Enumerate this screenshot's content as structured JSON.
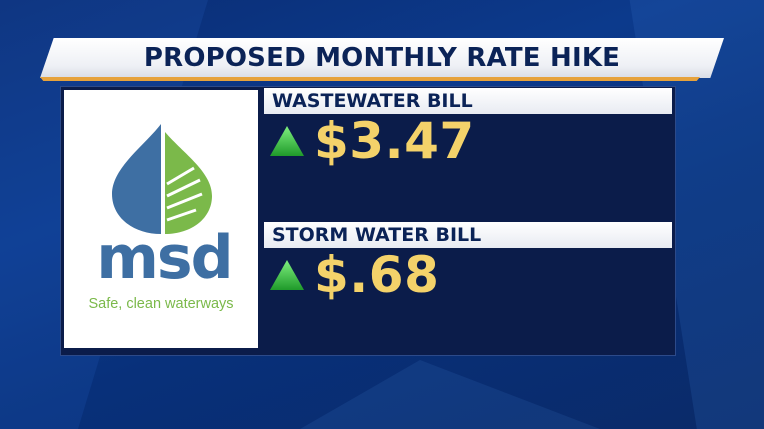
{
  "title": "PROPOSED MONTHLY RATE HIKE",
  "logo": {
    "wordmark": "msd",
    "tagline": "Safe, clean waterways",
    "colors": {
      "blue": "#3e6fa3",
      "green": "#7bb94a"
    }
  },
  "items": [
    {
      "label": "WASTEWATER BILL",
      "value": "$3.47",
      "trend_icon": "up-triangle-icon"
    },
    {
      "label": "STORM WATER BILL",
      "value": "$.68",
      "trend_icon": "up-triangle-icon"
    }
  ],
  "colors": {
    "background": "#0a2d74",
    "title_text": "#0b2357",
    "accent": "#e6a23c",
    "value_text": "#f4d26a",
    "trend_up": "#3fbf3f"
  }
}
